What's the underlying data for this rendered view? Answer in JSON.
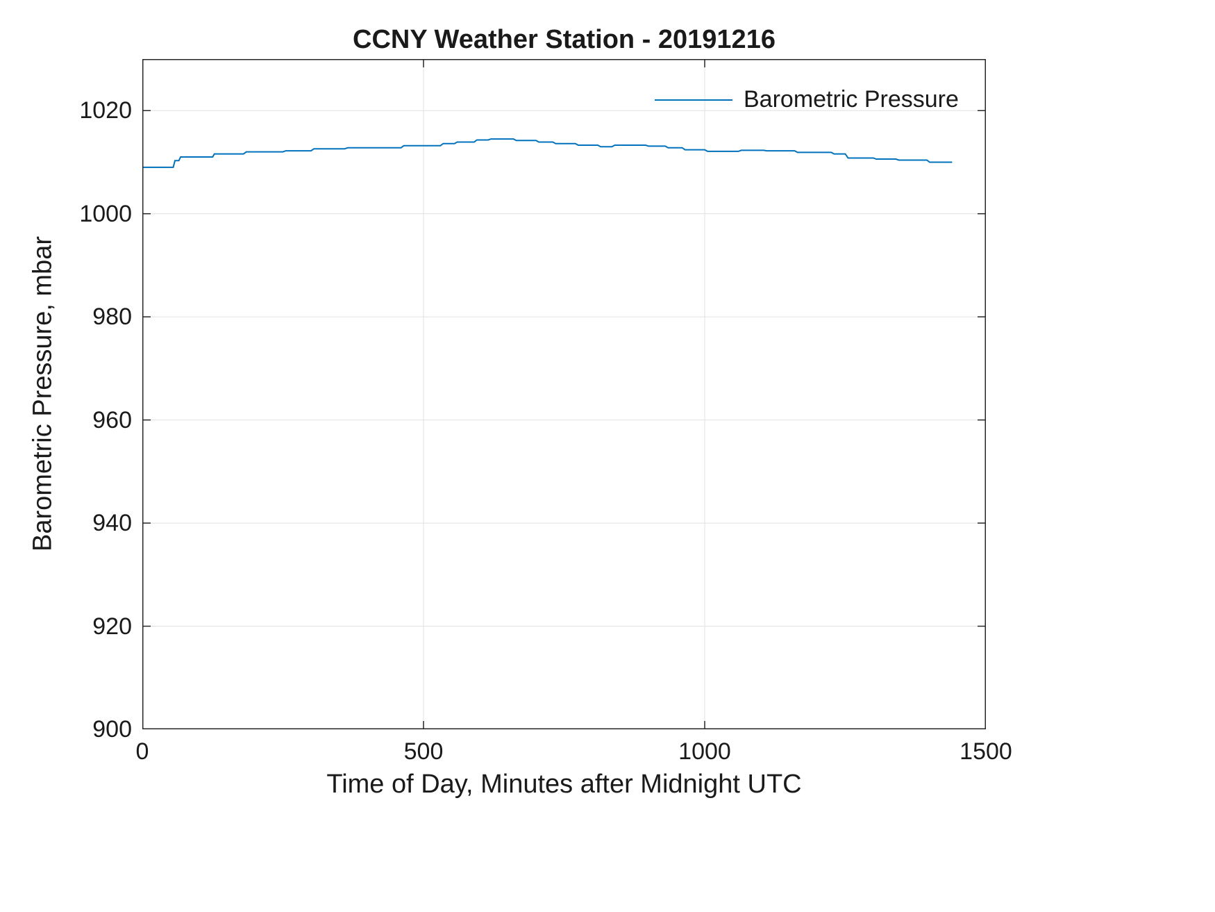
{
  "chart_data": {
    "type": "line",
    "title": "CCNY Weather Station - 20191216",
    "xlabel": "Time of Day, Minutes after Midnight UTC",
    "ylabel": "Barometric Pressure, mbar",
    "xlim": [
      0,
      1500
    ],
    "ylim": [
      900,
      1030
    ],
    "xticks": [
      0,
      500,
      1000,
      1500
    ],
    "yticks": [
      900,
      920,
      940,
      960,
      980,
      1000,
      1020
    ],
    "grid": true,
    "legend_position": "top-right",
    "line_color": "#0072BD",
    "grid_color": "#e0e0e0",
    "axis_color": "#262626",
    "series": [
      {
        "name": "Barometric Pressure",
        "points": [
          [
            0,
            1009.0
          ],
          [
            55,
            1009.0
          ],
          [
            58,
            1010.3
          ],
          [
            65,
            1010.3
          ],
          [
            68,
            1011.0
          ],
          [
            125,
            1011.0
          ],
          [
            128,
            1011.6
          ],
          [
            180,
            1011.6
          ],
          [
            185,
            1012.0
          ],
          [
            250,
            1012.0
          ],
          [
            255,
            1012.2
          ],
          [
            300,
            1012.2
          ],
          [
            305,
            1012.6
          ],
          [
            360,
            1012.6
          ],
          [
            365,
            1012.8
          ],
          [
            460,
            1012.8
          ],
          [
            465,
            1013.2
          ],
          [
            530,
            1013.2
          ],
          [
            535,
            1013.6
          ],
          [
            555,
            1013.6
          ],
          [
            560,
            1013.9
          ],
          [
            590,
            1013.9
          ],
          [
            595,
            1014.3
          ],
          [
            615,
            1014.3
          ],
          [
            620,
            1014.5
          ],
          [
            660,
            1014.5
          ],
          [
            665,
            1014.2
          ],
          [
            700,
            1014.2
          ],
          [
            705,
            1013.9
          ],
          [
            730,
            1013.9
          ],
          [
            735,
            1013.6
          ],
          [
            770,
            1013.6
          ],
          [
            775,
            1013.3
          ],
          [
            810,
            1013.3
          ],
          [
            815,
            1013.0
          ],
          [
            835,
            1013.0
          ],
          [
            840,
            1013.3
          ],
          [
            895,
            1013.3
          ],
          [
            900,
            1013.1
          ],
          [
            930,
            1013.1
          ],
          [
            935,
            1012.8
          ],
          [
            960,
            1012.8
          ],
          [
            965,
            1012.4
          ],
          [
            1000,
            1012.4
          ],
          [
            1005,
            1012.1
          ],
          [
            1060,
            1012.1
          ],
          [
            1065,
            1012.3
          ],
          [
            1105,
            1012.3
          ],
          [
            1110,
            1012.2
          ],
          [
            1160,
            1012.2
          ],
          [
            1165,
            1011.9
          ],
          [
            1225,
            1011.9
          ],
          [
            1230,
            1011.6
          ],
          [
            1250,
            1011.6
          ],
          [
            1255,
            1010.8
          ],
          [
            1300,
            1010.8
          ],
          [
            1305,
            1010.6
          ],
          [
            1340,
            1010.6
          ],
          [
            1345,
            1010.4
          ],
          [
            1395,
            1010.4
          ],
          [
            1400,
            1010.0
          ],
          [
            1440,
            1010.0
          ]
        ]
      }
    ]
  }
}
